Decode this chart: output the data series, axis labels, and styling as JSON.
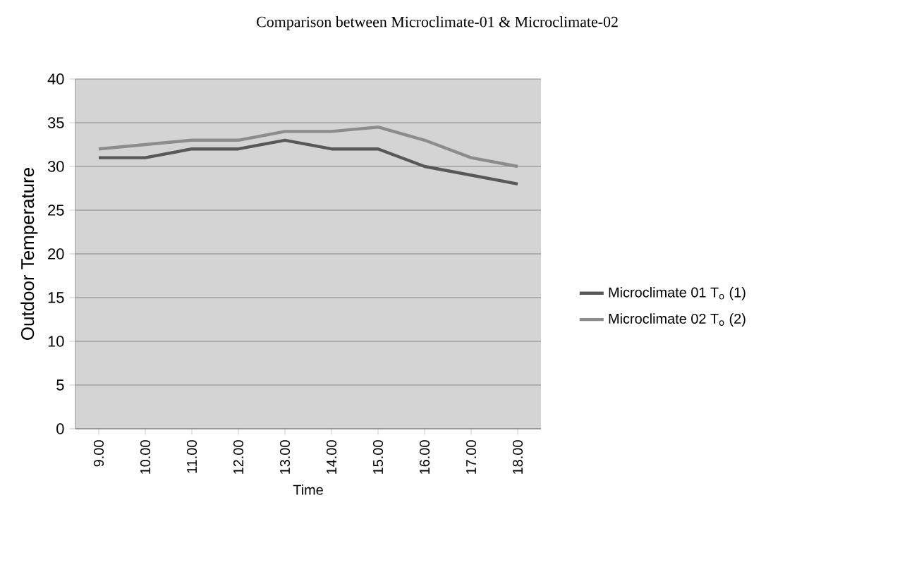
{
  "chart_data": {
    "type": "line",
    "title": "Comparison between Microclimate-01 & Microclimate-02",
    "xlabel": "Time",
    "ylabel": "Outdoor Temperature",
    "categories": [
      "9.00",
      "10.00",
      "11.00",
      "12.00",
      "13.00",
      "14.00",
      "15.00",
      "16.00",
      "17.00",
      "18.00"
    ],
    "series": [
      {
        "name": "Microclimate 01  T$_{o}$  (1)",
        "color": "#585858",
        "values": [
          31,
          31,
          32,
          32,
          33,
          32,
          32,
          30,
          29,
          28
        ]
      },
      {
        "name": "Microclimate 02  T$_{o}$  (2)",
        "color": "#8c8c8c",
        "values": [
          32,
          32.5,
          33,
          33,
          34,
          34,
          34.5,
          33,
          31,
          30
        ]
      }
    ],
    "ylim": [
      0,
      40
    ],
    "yticks": [
      0,
      5,
      10,
      15,
      20,
      25,
      30,
      35,
      40
    ],
    "grid": "y",
    "legend": "right",
    "marker": "none",
    "line_style": "solid"
  }
}
